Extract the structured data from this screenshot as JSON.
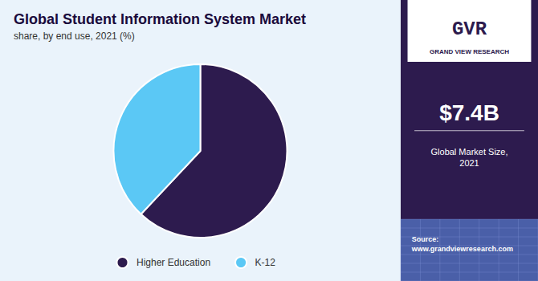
{
  "chart_data": {
    "type": "pie",
    "title": "Global Student Information System Market",
    "subtitle": "share, by end use, 2021 (%)",
    "categories": [
      "Higher Education",
      "K-12"
    ],
    "values": [
      62,
      38
    ],
    "colors": [
      "#2d1b4e",
      "#5bc8f5"
    ],
    "legend": "bottom",
    "annotations": [
      "GVR",
      "GRAND VIEW RESEARCH",
      "$7.4B",
      "Global Market Size,\n2021",
      "Source:\nwww.grandviewresearch.com"
    ]
  }
}
